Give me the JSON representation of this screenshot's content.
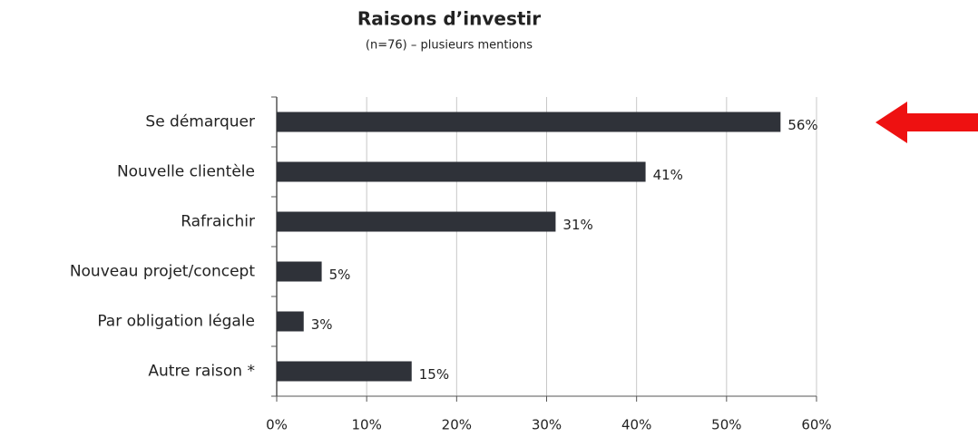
{
  "chart_data": {
    "type": "bar",
    "orientation": "horizontal",
    "title": "Raisons d’investir",
    "subtitle": "(n=76) – plusieurs mentions",
    "categories": [
      "Se démarquer",
      "Nouvelle clientèle",
      "Rafraichir",
      "Nouveau projet/concept",
      "Par obligation légale",
      "Autre raison *"
    ],
    "values": [
      56,
      41,
      31,
      5,
      3,
      15
    ],
    "value_labels": [
      "56%",
      "41%",
      "31%",
      "5%",
      "3%",
      "15%"
    ],
    "color": "#2f3239",
    "xlim": [
      0,
      60
    ],
    "xticks": [
      {
        "value": 0,
        "label": "0%"
      },
      {
        "value": 10,
        "label": "10%"
      },
      {
        "value": 20,
        "label": "20%"
      },
      {
        "value": 30,
        "label": "30%"
      },
      {
        "value": 40,
        "label": "40%"
      },
      {
        "value": 50,
        "label": "50%"
      },
      {
        "value": 60,
        "label": "60%"
      }
    ],
    "grid": true
  }
}
